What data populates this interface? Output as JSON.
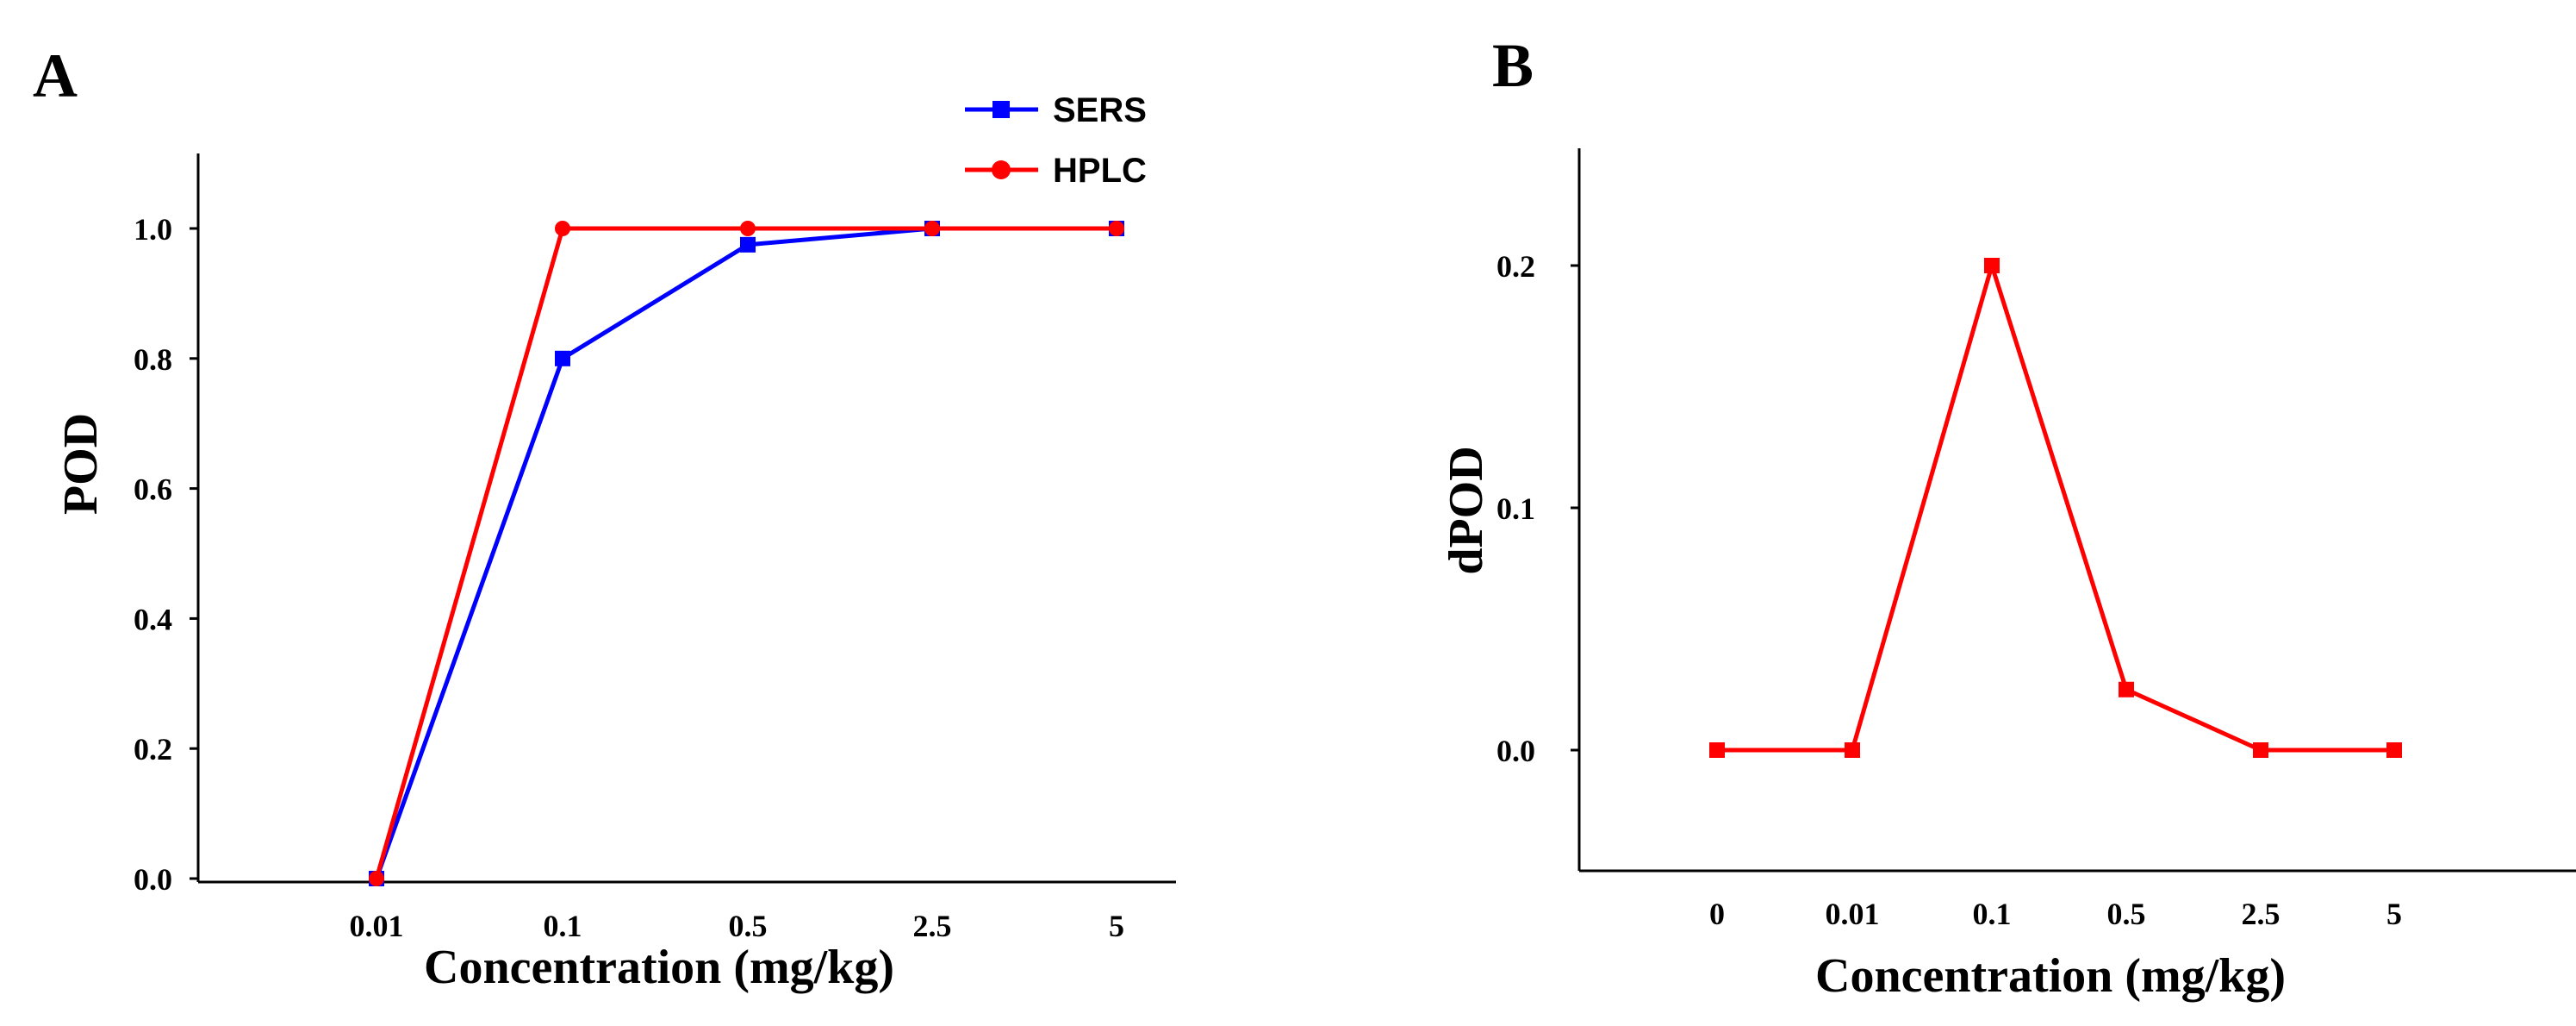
{
  "chart_data": [
    {
      "panel": "A",
      "type": "line",
      "categories": [
        "0.01",
        "0.1",
        "0.5",
        "2.5",
        "5"
      ],
      "series": [
        {
          "name": "SERS",
          "color": "#0000ff",
          "marker": "square",
          "values": [
            0.0,
            0.8,
            0.975,
            1.0,
            1.0
          ]
        },
        {
          "name": "HPLC",
          "color": "#ff0000",
          "marker": "circle",
          "values": [
            0.0,
            1.0,
            1.0,
            1.0,
            1.0
          ]
        }
      ],
      "title": "",
      "xlabel": "Concentration (mg/kg)",
      "ylabel": "POD",
      "ylim": [
        0.0,
        1.1
      ],
      "yticks": [
        "0.0",
        "0.2",
        "0.4",
        "0.6",
        "0.8",
        "1.0"
      ],
      "grid": false,
      "legend": "top-right"
    },
    {
      "panel": "B",
      "type": "line",
      "categories": [
        "0",
        "0.01",
        "0.1",
        "0.5",
        "2.5",
        "5"
      ],
      "series": [
        {
          "name": "dPOD",
          "color": "#ff0000",
          "marker": "square",
          "values": [
            0.0,
            0.0,
            0.2,
            0.025,
            0.0,
            0.0
          ]
        }
      ],
      "title": "",
      "xlabel": "Concentration (mg/kg)",
      "ylabel": "dPOD",
      "ylim": [
        -0.05,
        0.25
      ],
      "yticks": [
        "0.0",
        "0.1",
        "0.2"
      ],
      "grid": false,
      "legend": "none"
    }
  ]
}
